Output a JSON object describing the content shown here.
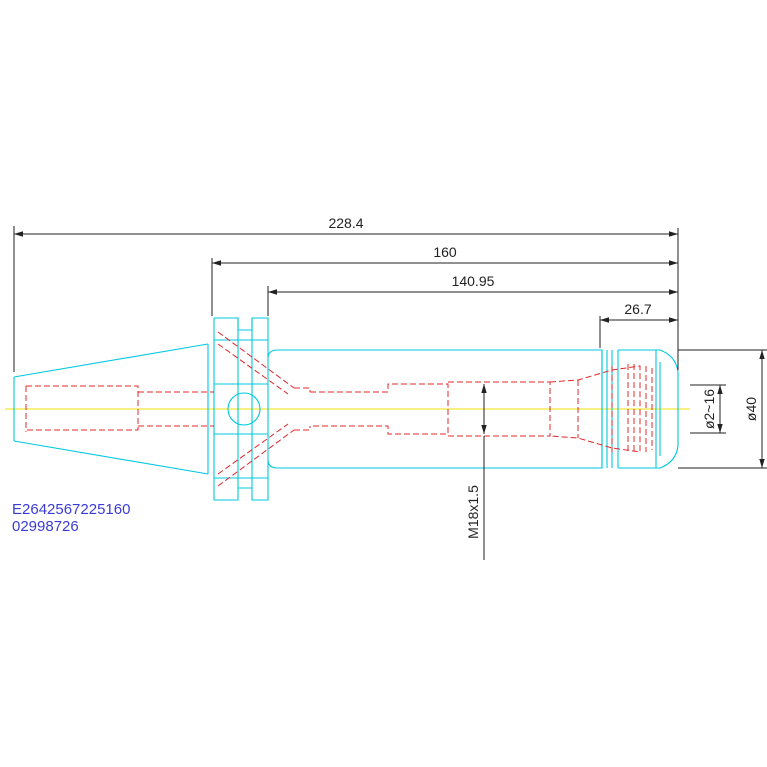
{
  "dimensions": {
    "overall_length": "228.4",
    "gauge_length": "160",
    "body_length": "140.95",
    "nose_length": "26.7",
    "clamp_range": "ø2~16",
    "nose_diameter": "ø40",
    "thread": "M18x1.5"
  },
  "part": {
    "code": "E2642567225160",
    "number": "02998726"
  },
  "colors": {
    "outline": "#00c8e0",
    "hidden": "#e0282a",
    "centerline": "#f0e000",
    "dimension": "#222222",
    "code_text": "#3b3bd6"
  }
}
